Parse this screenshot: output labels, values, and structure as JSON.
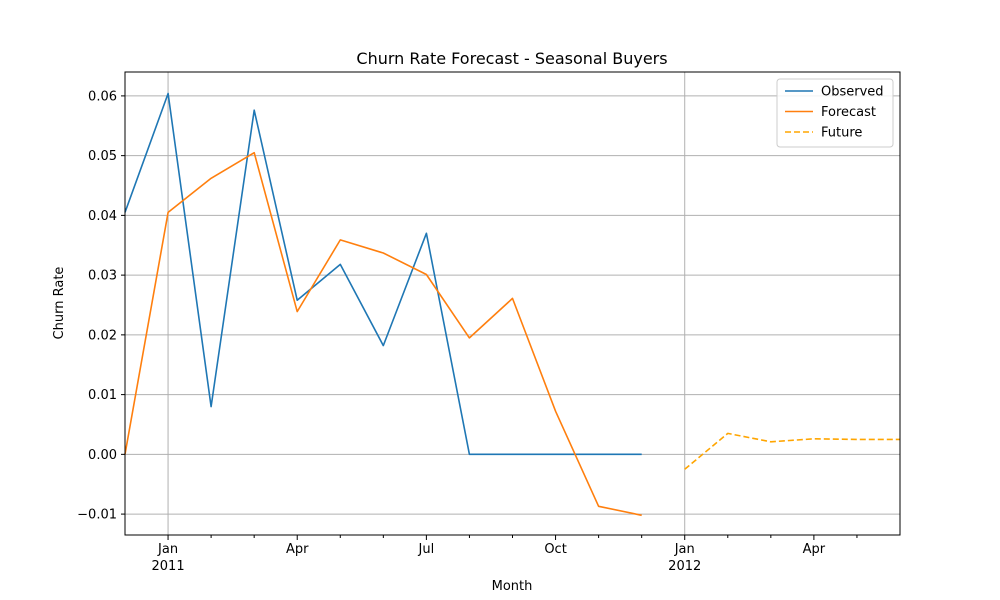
{
  "chart_data": {
    "type": "line",
    "title": "Churn Rate Forecast - Seasonal Buyers",
    "xlabel": "Month",
    "ylabel": "Churn Rate",
    "ylim": [
      -0.0135,
      0.064
    ],
    "xlim": [
      "2010-12",
      "2012-06"
    ],
    "grid": true,
    "legend_position": "top-right",
    "y_ticks": [
      -0.01,
      0.0,
      0.01,
      0.02,
      0.03,
      0.04,
      0.05,
      0.06
    ],
    "y_tick_labels": [
      "−0.01",
      "0.00",
      "0.01",
      "0.02",
      "0.03",
      "0.04",
      "0.05",
      "0.06"
    ],
    "x_major_ticks": [
      {
        "date": "2011-01",
        "label": "Jan",
        "sublabel": "2011"
      },
      {
        "date": "2011-04",
        "label": "Apr",
        "sublabel": ""
      },
      {
        "date": "2011-07",
        "label": "Jul",
        "sublabel": ""
      },
      {
        "date": "2011-10",
        "label": "Oct",
        "sublabel": ""
      },
      {
        "date": "2012-01",
        "label": "Jan",
        "sublabel": "2012"
      },
      {
        "date": "2012-04",
        "label": "Apr",
        "sublabel": ""
      }
    ],
    "x_minor_ticks": [
      "2011-02",
      "2011-03",
      "2011-05",
      "2011-06",
      "2011-08",
      "2011-09",
      "2011-11",
      "2011-12",
      "2012-02",
      "2012-03",
      "2012-05"
    ],
    "vertical_gridlines": [
      "2011-01",
      "2012-01"
    ],
    "series": [
      {
        "name": "Observed",
        "color": "#1f77b4",
        "style": "solid",
        "x": [
          "2010-12",
          "2011-01",
          "2011-02",
          "2011-03",
          "2011-04",
          "2011-05",
          "2011-06",
          "2011-07",
          "2011-08",
          "2011-09",
          "2011-10",
          "2011-11",
          "2011-12"
        ],
        "y": [
          0.0405,
          0.0604,
          0.008,
          0.0576,
          0.0258,
          0.0318,
          0.0182,
          0.037,
          0.0,
          0.0,
          0.0,
          0.0,
          0.0
        ]
      },
      {
        "name": "Forecast",
        "color": "#ff7f0e",
        "style": "solid",
        "x": [
          "2010-12",
          "2011-01",
          "2011-02",
          "2011-03",
          "2011-04",
          "2011-05",
          "2011-06",
          "2011-07",
          "2011-08",
          "2011-09",
          "2011-10",
          "2011-11",
          "2011-12"
        ],
        "y": [
          0.0,
          0.0405,
          0.0462,
          0.0505,
          0.0239,
          0.0359,
          0.0337,
          0.0301,
          0.0195,
          0.0261,
          0.0072,
          -0.0087,
          -0.0102
        ]
      },
      {
        "name": "Future",
        "color": "#ffa500",
        "style": "dashed",
        "x": [
          "2012-01",
          "2012-02",
          "2012-03",
          "2012-04",
          "2012-05",
          "2012-06"
        ],
        "y": [
          -0.0025,
          0.0035,
          0.0021,
          0.0026,
          0.0025,
          0.0025
        ]
      }
    ]
  }
}
